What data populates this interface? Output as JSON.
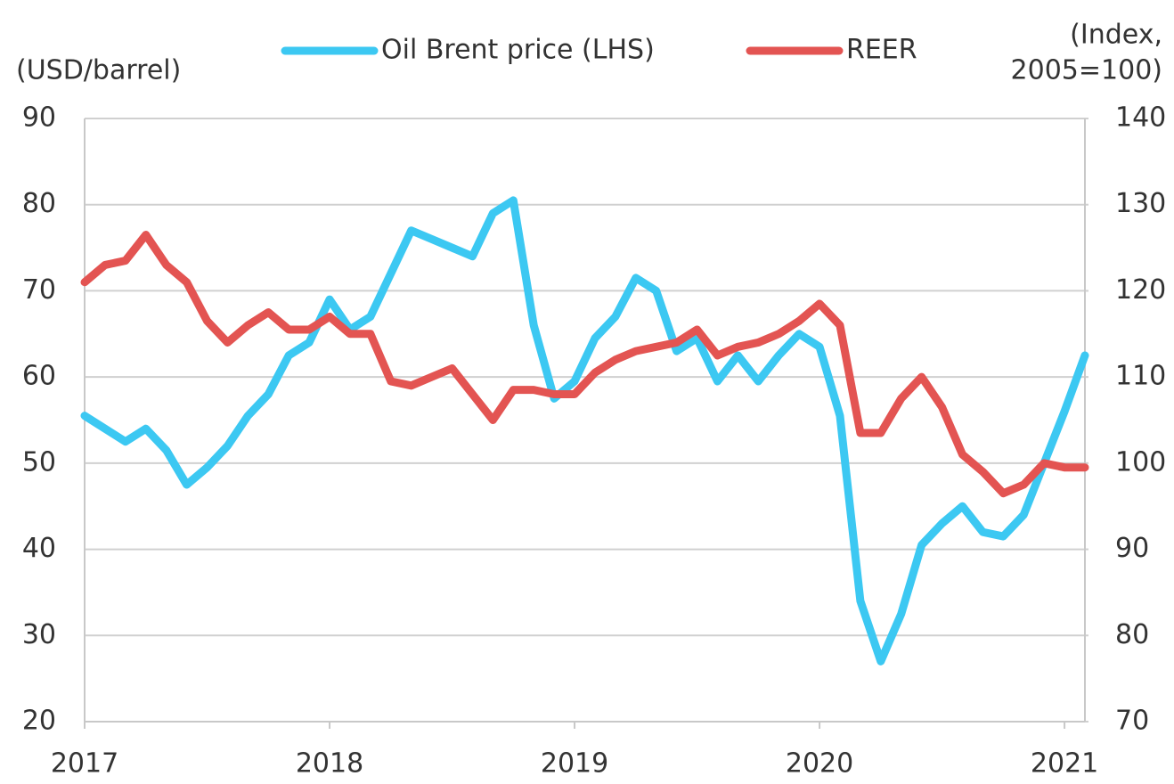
{
  "chart_data": {
    "type": "line",
    "ylabel": "(USD/barrel)",
    "y2label": [
      "(Index,",
      "2005=100)"
    ],
    "categories": [
      "2017",
      null,
      null,
      null,
      null,
      null,
      null,
      null,
      null,
      null,
      null,
      null,
      "2018",
      null,
      null,
      null,
      null,
      null,
      null,
      null,
      null,
      null,
      null,
      null,
      "2019",
      null,
      null,
      null,
      null,
      null,
      null,
      null,
      null,
      null,
      null,
      null,
      "2020",
      null,
      null,
      null,
      null,
      null,
      null,
      null,
      null,
      null,
      null,
      null,
      "2021",
      null
    ],
    "series": [
      {
        "name": "Oil Brent price (LHS)",
        "color": "#3cc8f2",
        "axis": "y",
        "values": [
          55.5,
          54,
          52.5,
          54,
          51.5,
          47.5,
          49.5,
          52,
          55.5,
          58,
          62.5,
          64,
          69,
          65.5,
          67,
          72,
          77,
          76,
          75,
          74,
          79,
          80.5,
          66,
          57.5,
          59.5,
          64.5,
          67,
          71.5,
          70,
          63,
          64.5,
          59.5,
          62.5,
          59.5,
          62.5,
          65,
          63.5,
          55.5,
          34,
          27,
          32.5,
          40.5,
          43,
          45,
          42,
          41.5,
          44,
          50,
          56,
          62.5
        ]
      },
      {
        "name": "REER",
        "color": "#e35452",
        "axis": "y2",
        "values": [
          121,
          123,
          123.5,
          126.5,
          123,
          121,
          116.5,
          114,
          116,
          117.5,
          115.5,
          115.5,
          117,
          115,
          115,
          109.5,
          109,
          110,
          111,
          108,
          105,
          108.5,
          108.5,
          108,
          108,
          110.5,
          112,
          113,
          113.5,
          114,
          115.5,
          112.5,
          113.5,
          114,
          115,
          116.5,
          118.5,
          116,
          103.5,
          103.5,
          107.5,
          110,
          106.5,
          101,
          99,
          96.5,
          97.5,
          100,
          99.5,
          99.5
        ]
      }
    ],
    "ylim": [
      20,
      90
    ],
    "yticks": [
      20,
      30,
      40,
      50,
      60,
      70,
      80,
      90
    ],
    "y2lim": [
      70,
      140
    ],
    "y2ticks": [
      70,
      80,
      90,
      100,
      110,
      120,
      130,
      140
    ],
    "grid": true,
    "legend": "top"
  }
}
